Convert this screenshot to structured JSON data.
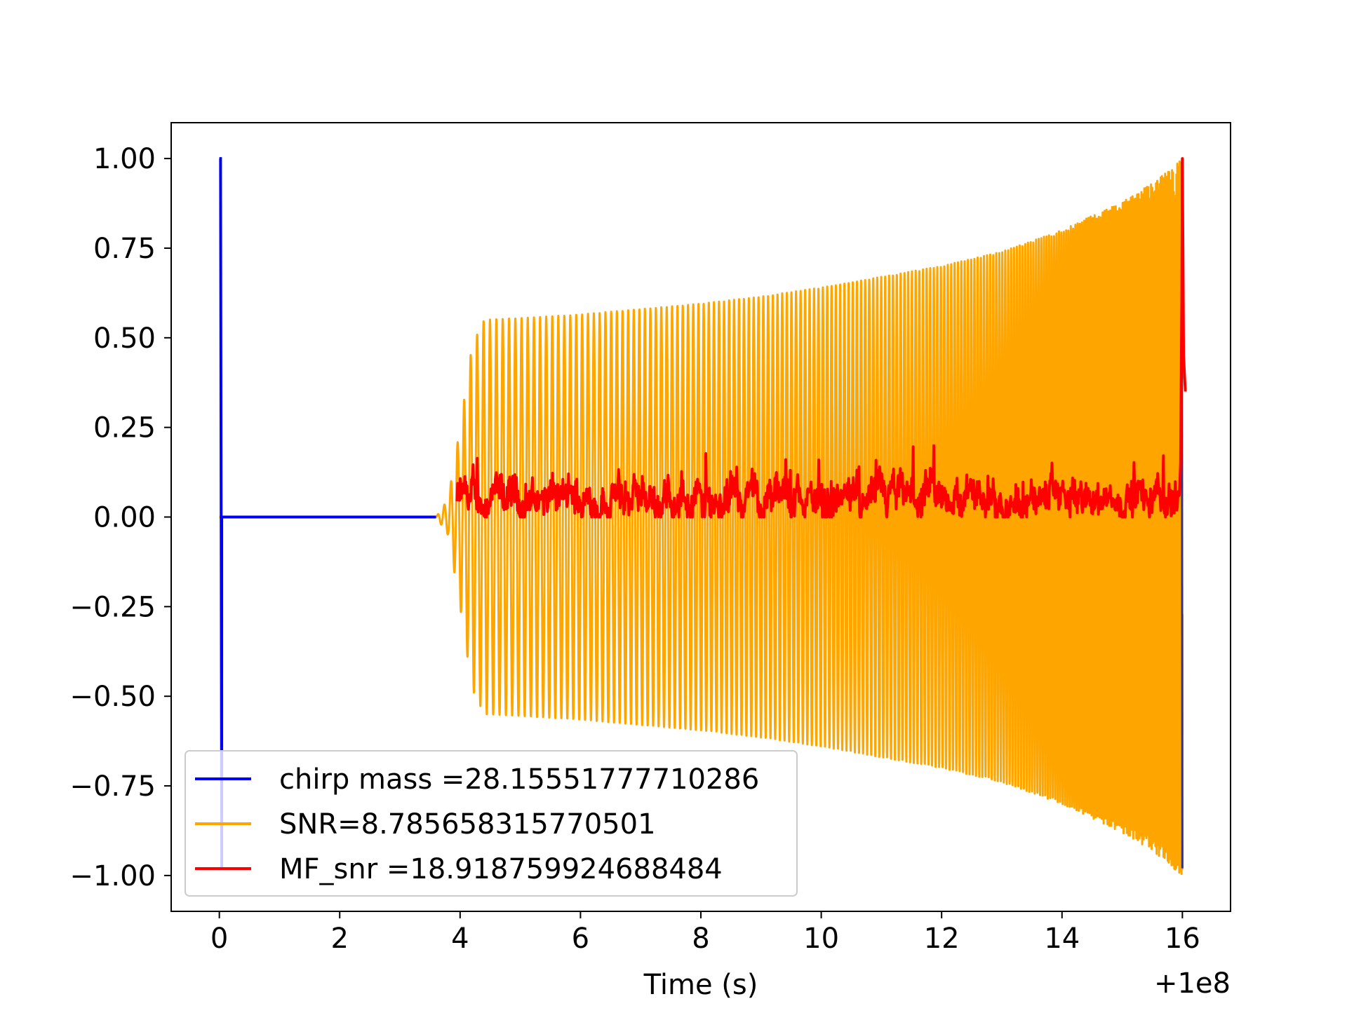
{
  "chart_data": {
    "type": "line",
    "title": "",
    "xlabel": "Time (s)",
    "ylabel": "",
    "x_offset_label": "+1e8",
    "xlim": [
      -0.8,
      16.8
    ],
    "ylim": [
      -1.1,
      1.1
    ],
    "xticks": [
      0,
      2,
      4,
      6,
      8,
      10,
      12,
      14,
      16
    ],
    "xtick_labels": [
      "0",
      "2",
      "4",
      "6",
      "8",
      "10",
      "12",
      "14",
      "16"
    ],
    "yticks": [
      1.0,
      0.75,
      0.5,
      0.25,
      0.0,
      -0.25,
      -0.5,
      -0.75,
      -1.0
    ],
    "ytick_labels": [
      "1.00",
      "0.75",
      "0.50",
      "0.25",
      "0.00",
      "−0.25",
      "−0.50",
      "−0.75",
      "−1.00"
    ],
    "grid": false,
    "legend_position": "lower-left",
    "series": [
      {
        "name": "chirp mass =28.15551777710286",
        "color": "#0000ff",
        "description_points": {
          "x": [
            0.0,
            0.02,
            0.04,
            0.06,
            15.98,
            16.0,
            16.02,
            16.04
          ],
          "y": [
            0.0,
            1.0,
            -0.98,
            0.0,
            0.0,
            0.99,
            -0.98,
            0.0
          ]
        },
        "flat_value_range": [
          0.04,
          16.0
        ]
      },
      {
        "name": "SNR=8.785658315770501",
        "color": "#ffa500",
        "flat_until": 3.6,
        "envelope": {
          "x": [
            3.6,
            3.8,
            4.0,
            4.2,
            4.4,
            5.0,
            6.0,
            7.0,
            8.0,
            9.0,
            10.0,
            11.0,
            12.0,
            13.0,
            14.0,
            15.0,
            15.5,
            16.0
          ],
          "amplitude": [
            0.0,
            0.05,
            0.25,
            0.48,
            0.55,
            0.555,
            0.565,
            0.58,
            0.595,
            0.615,
            0.64,
            0.67,
            0.7,
            0.74,
            0.8,
            0.88,
            0.93,
            1.0
          ]
        },
        "end_x": 16.0
      },
      {
        "name": "MF_snr =18.918759924688484",
        "color": "#ff0000",
        "start_x": 3.95,
        "baseline": 0.05,
        "noise_range": [
          0.0,
          0.2
        ],
        "peak": {
          "x": 16.0,
          "y": 1.0
        },
        "end": {
          "x": 16.05,
          "y": 0.35
        }
      }
    ]
  }
}
